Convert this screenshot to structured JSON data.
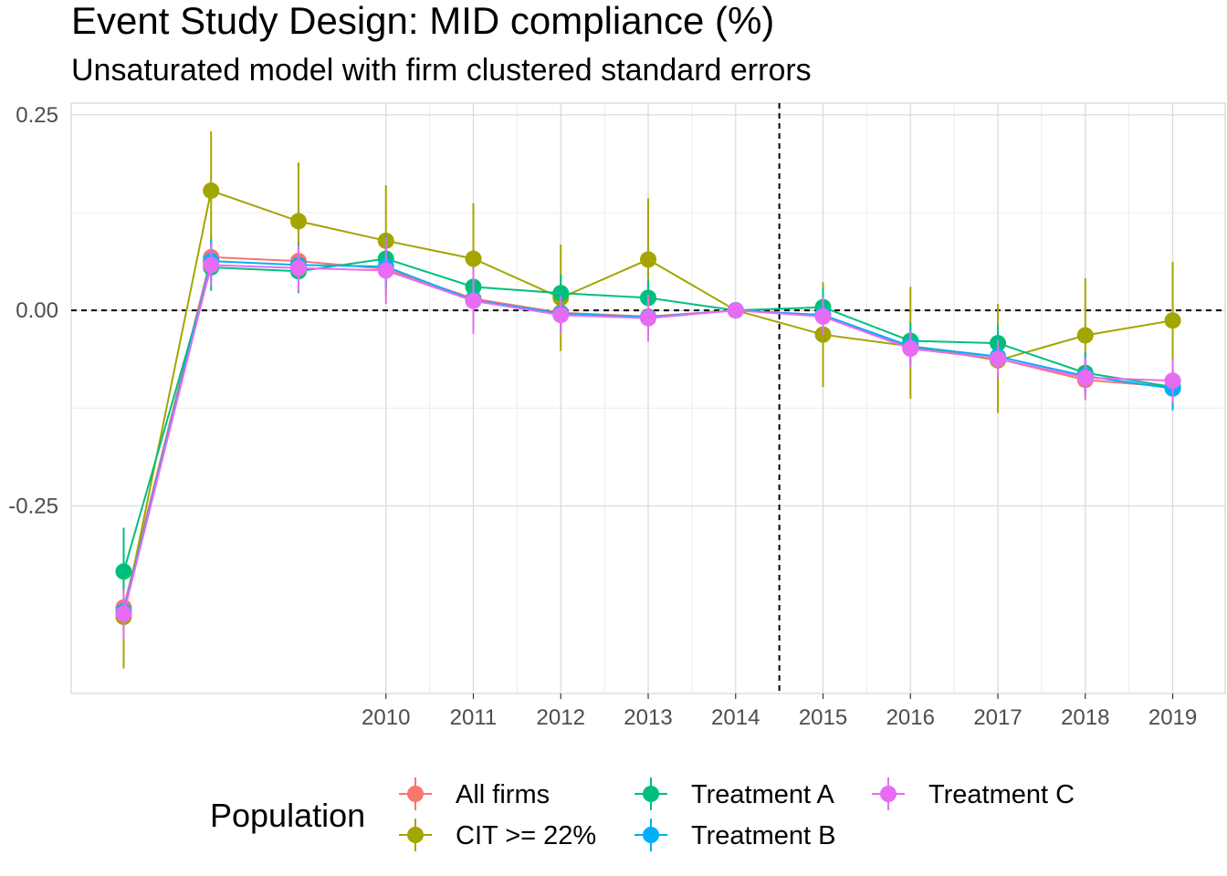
{
  "chart_data": {
    "type": "line",
    "title": "Event Study Design: MID compliance (%)",
    "subtitle": "Unsaturated model with firm clustered standard errors",
    "xlabel": "",
    "ylabel": "",
    "x": [
      2007,
      2008,
      2009,
      2010,
      2011,
      2012,
      2013,
      2014,
      2015,
      2016,
      2017,
      2018,
      2019
    ],
    "x_tick_labels": [
      "2010",
      "2011",
      "2012",
      "2013",
      "2014",
      "2015",
      "2016",
      "2017",
      "2018",
      "2019"
    ],
    "x_tick_values": [
      2010,
      2011,
      2012,
      2013,
      2014,
      2015,
      2016,
      2017,
      2018,
      2019
    ],
    "xlim": [
      2006.4,
      2019.6
    ],
    "y_tick_labels": [
      "0.25",
      "0.00",
      "-0.25"
    ],
    "y_tick_values": [
      0.25,
      0.0,
      -0.25
    ],
    "ylim": [
      -0.49,
      0.265
    ],
    "reference_lines": {
      "vertical_x": 2014.5,
      "horizontal_y": 0
    },
    "grid": true,
    "legend": {
      "title": "Population",
      "position": "bottom"
    },
    "series": [
      {
        "name": "All firms",
        "color": "#F8766D",
        "values": [
          -0.38,
          0.068,
          0.063,
          0.053,
          0.015,
          -0.003,
          -0.008,
          0.0,
          -0.006,
          -0.047,
          -0.062,
          -0.089,
          -0.098
        ],
        "lower": [
          -0.41,
          0.04,
          0.035,
          0.025,
          -0.01,
          -0.025,
          -0.03,
          0.0,
          -0.03,
          -0.07,
          -0.085,
          -0.115,
          -0.125
        ],
        "upper": [
          -0.35,
          0.096,
          0.091,
          0.081,
          0.04,
          0.019,
          0.014,
          0.0,
          0.018,
          -0.024,
          -0.039,
          -0.063,
          -0.071
        ]
      },
      {
        "name": "CIT >= 22%",
        "color": "#A3A500",
        "values": [
          -0.392,
          0.153,
          0.114,
          0.089,
          0.066,
          0.016,
          0.065,
          0.0,
          -0.031,
          -0.046,
          -0.064,
          -0.032,
          -0.013
        ],
        "lower": [
          -0.458,
          0.077,
          0.039,
          0.018,
          -0.005,
          -0.052,
          -0.013,
          0.0,
          -0.098,
          -0.113,
          -0.131,
          -0.103,
          -0.086
        ],
        "upper": [
          -0.326,
          0.229,
          0.189,
          0.16,
          0.137,
          0.084,
          0.143,
          0.0,
          0.036,
          0.03,
          0.008,
          0.041,
          0.062
        ]
      },
      {
        "name": "Treatment A",
        "color": "#00BF7D",
        "values": [
          -0.334,
          0.055,
          0.05,
          0.066,
          0.03,
          0.022,
          0.016,
          0.0,
          0.004,
          -0.039,
          -0.042,
          -0.08,
          -0.098
        ],
        "lower": [
          -0.39,
          0.025,
          0.022,
          0.036,
          0.005,
          -0.002,
          -0.008,
          0.0,
          -0.02,
          -0.062,
          -0.065,
          -0.106,
          -0.126
        ],
        "upper": [
          -0.278,
          0.085,
          0.078,
          0.096,
          0.055,
          0.046,
          0.04,
          0.0,
          0.028,
          -0.016,
          -0.019,
          -0.054,
          -0.07
        ]
      },
      {
        "name": "Treatment B",
        "color": "#00B0F6",
        "values": [
          -0.385,
          0.063,
          0.058,
          0.056,
          0.013,
          -0.004,
          -0.009,
          0.0,
          -0.006,
          -0.046,
          -0.059,
          -0.084,
          -0.1
        ],
        "lower": [
          -0.415,
          0.035,
          0.03,
          0.028,
          -0.012,
          -0.028,
          -0.033,
          0.0,
          -0.03,
          -0.069,
          -0.083,
          -0.11,
          -0.128
        ],
        "upper": [
          -0.355,
          0.091,
          0.086,
          0.084,
          0.038,
          0.02,
          0.015,
          0.0,
          0.018,
          -0.023,
          -0.035,
          -0.058,
          -0.072
        ]
      },
      {
        "name": "Treatment C",
        "color": "#E76BF3",
        "values": [
          -0.388,
          0.058,
          0.054,
          0.051,
          0.012,
          -0.006,
          -0.01,
          0.0,
          -0.008,
          -0.049,
          -0.062,
          -0.086,
          -0.09
        ],
        "lower": [
          -0.42,
          0.03,
          0.025,
          0.008,
          -0.03,
          -0.03,
          -0.04,
          0.0,
          -0.032,
          -0.072,
          -0.086,
          -0.112,
          -0.118
        ],
        "upper": [
          -0.356,
          0.086,
          0.083,
          0.094,
          0.054,
          0.018,
          0.02,
          0.0,
          0.016,
          -0.026,
          -0.038,
          -0.06,
          -0.062
        ]
      }
    ]
  }
}
